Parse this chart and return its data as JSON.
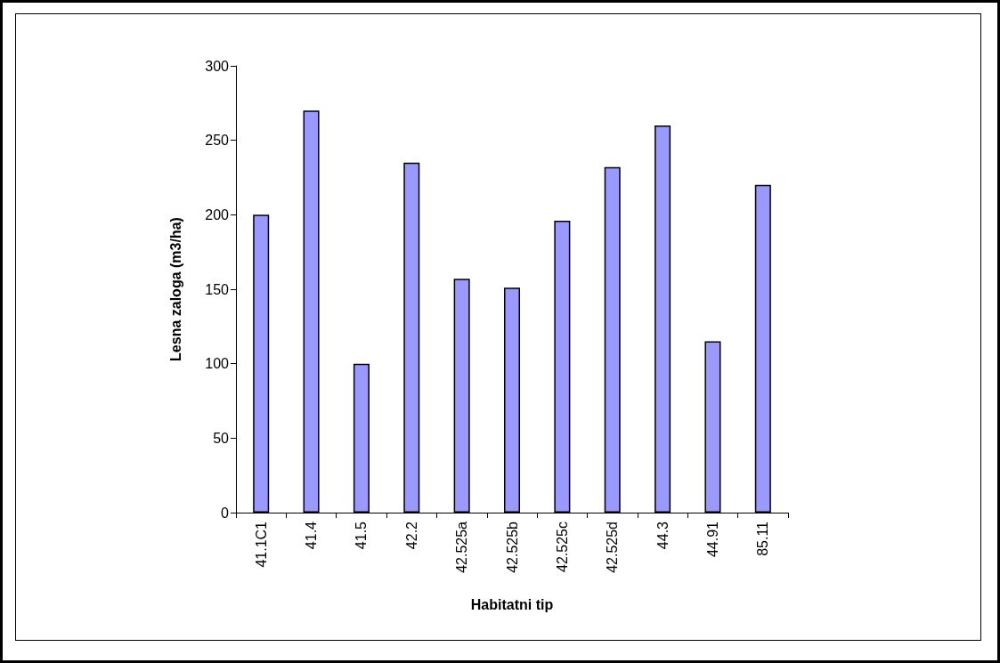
{
  "chart_data": {
    "type": "bar",
    "xlabel": "Habitatni tip",
    "ylabel": "Lesna zaloga (m3/ha)",
    "categories": [
      "41.1C1",
      "41.4",
      "41.5",
      "42.2",
      "42.525a",
      "42.525b",
      "42.525c",
      "42.525d",
      "44.3",
      "44.91",
      "85.11"
    ],
    "values": [
      200,
      270,
      100,
      235,
      157,
      151,
      196,
      232,
      260,
      115,
      220
    ],
    "color": "#9999ff",
    "ylim": [
      0,
      300
    ],
    "yticks": [
      0,
      50,
      100,
      150,
      200,
      250,
      300
    ],
    "grid": false
  }
}
